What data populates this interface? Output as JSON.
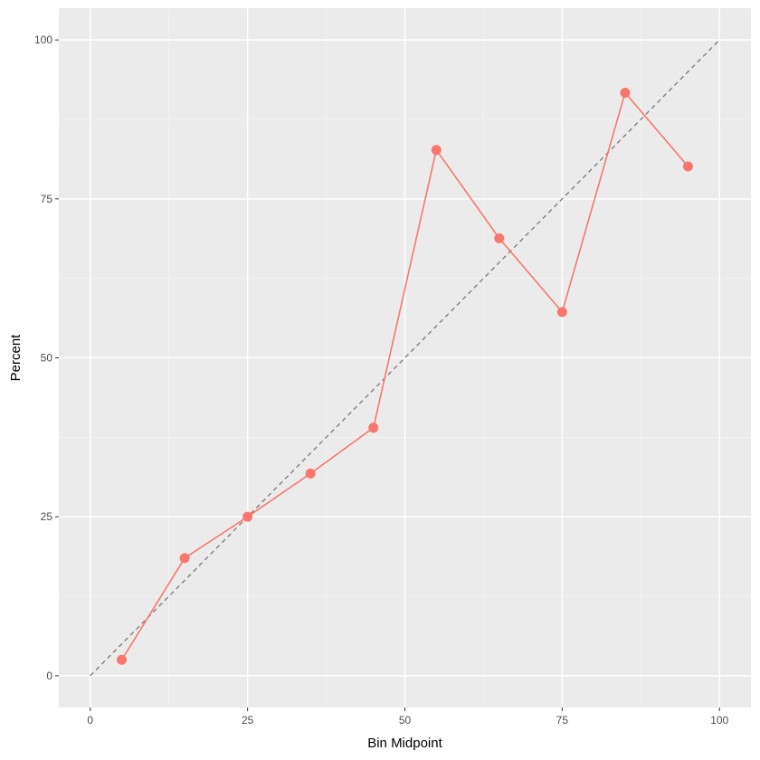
{
  "chart_data": {
    "type": "line",
    "title": "",
    "xlabel": "Bin Midpoint",
    "ylabel": "Percent",
    "xlim": [
      -5,
      105
    ],
    "ylim": [
      -5,
      105
    ],
    "x_ticks": [
      0,
      25,
      50,
      75,
      100
    ],
    "y_ticks": [
      0,
      25,
      50,
      75,
      100
    ],
    "x_tick_labels": [
      "0",
      "25",
      "50",
      "75",
      "100"
    ],
    "y_tick_labels": [
      "0",
      "25",
      "50",
      "75",
      "100"
    ],
    "grid": true,
    "background": "#ebebeb",
    "reference_line": {
      "from": [
        0,
        0
      ],
      "to": [
        100,
        100
      ],
      "style": "dashed",
      "color": "#7f7f7f"
    },
    "series": [
      {
        "color": "#f8766d",
        "x": [
          5,
          15,
          25,
          35,
          45,
          55,
          65,
          75,
          85,
          95
        ],
        "y": [
          2.5,
          18.5,
          25.0,
          31.8,
          39.0,
          82.7,
          68.8,
          57.2,
          91.7,
          80.1
        ]
      }
    ]
  }
}
